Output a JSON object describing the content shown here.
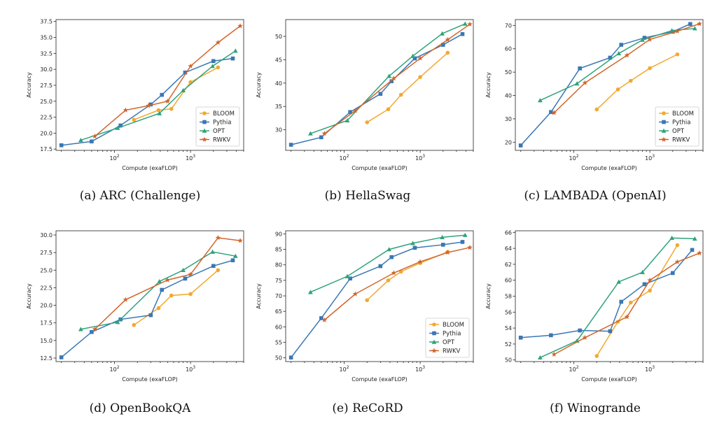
{
  "colors": {
    "BLOOM": "#f2a830",
    "Pythia": "#3a77b4",
    "OPT": "#2fa37b",
    "RWKV": "#d2652a"
  },
  "markers": {
    "BLOOM": "circle",
    "Pythia": "square",
    "OPT": "triangle",
    "RWKV": "star"
  },
  "chart_data": [
    {
      "type": "line",
      "caption": "(a) ARC (Challenge)",
      "xlabel": "Compute (exaFLOP)",
      "ylabel": "Accuracy",
      "xscale": "log",
      "xlim": [
        17,
        5000
      ],
      "ylim": [
        17.3,
        37.8
      ],
      "yticks": [
        "17.5",
        "20.0",
        "22.5",
        "25.0",
        "27.5",
        "30.0",
        "32.5",
        "35.0",
        "37.5"
      ],
      "xticks": [
        "10^2",
        "10^3"
      ],
      "legend": "lower-right",
      "legend_entries": [
        "BLOOM",
        "Pythia",
        "OPT",
        "RWKV"
      ],
      "series": [
        {
          "name": "BLOOM",
          "points": [
            [
              180,
              22.1
            ],
            [
              380,
              23.6
            ],
            [
              560,
              23.8
            ],
            [
              1000,
              28.0
            ],
            [
              2300,
              30.3
            ]
          ]
        },
        {
          "name": "Pythia",
          "points": [
            [
              20,
              18.1
            ],
            [
              50,
              18.7
            ],
            [
              120,
              21.2
            ],
            [
              300,
              24.5
            ],
            [
              420,
              26.0
            ],
            [
              850,
              29.5
            ],
            [
              2000,
              31.3
            ],
            [
              3600,
              31.7
            ]
          ]
        },
        {
          "name": "OPT",
          "points": [
            [
              36,
              18.9
            ],
            [
              110,
              20.8
            ],
            [
              390,
              23.1
            ],
            [
              800,
              26.7
            ],
            [
              1950,
              30.5
            ],
            [
              3900,
              32.9
            ]
          ]
        },
        {
          "name": "RWKV",
          "points": [
            [
              55,
              19.5
            ],
            [
              140,
              23.6
            ],
            [
              280,
              24.3
            ],
            [
              500,
              25.0
            ],
            [
              1000,
              30.5
            ],
            [
              2300,
              34.2
            ],
            [
              4500,
              36.8
            ]
          ]
        }
      ]
    },
    {
      "type": "line",
      "caption": "(b) HellaSwag",
      "xlabel": "Compute (exaFLOP)",
      "ylabel": "Accuracy",
      "xscale": "log",
      "xlim": [
        17,
        5000
      ],
      "ylim": [
        25.6,
        53.6
      ],
      "yticks": [
        "30",
        "35",
        "40",
        "45",
        "50"
      ],
      "xticks": [
        "10^2",
        "10^3"
      ],
      "series": [
        {
          "name": "BLOOM",
          "points": [
            [
              200,
              31.6
            ],
            [
              380,
              34.4
            ],
            [
              560,
              37.5
            ],
            [
              1000,
              41.3
            ],
            [
              2300,
              46.5
            ]
          ]
        },
        {
          "name": "Pythia",
          "points": [
            [
              20,
              26.8
            ],
            [
              50,
              28.4
            ],
            [
              120,
              33.8
            ],
            [
              300,
              37.7
            ],
            [
              420,
              40.4
            ],
            [
              850,
              45.3
            ],
            [
              2000,
              48.2
            ],
            [
              3600,
              50.5
            ]
          ]
        },
        {
          "name": "OPT",
          "points": [
            [
              36,
              29.2
            ],
            [
              110,
              32.0
            ],
            [
              390,
              41.5
            ],
            [
              800,
              45.8
            ],
            [
              1950,
              50.6
            ],
            [
              3900,
              52.7
            ]
          ]
        },
        {
          "name": "RWKV",
          "points": [
            [
              55,
              29.2
            ],
            [
              140,
              34.1
            ],
            [
              450,
              41.0
            ],
            [
              1000,
              45.3
            ],
            [
              2300,
              49.3
            ],
            [
              4500,
              52.6
            ]
          ]
        }
      ]
    },
    {
      "type": "line",
      "caption": "(c) LAMBADA (OpenAI)",
      "xlabel": "Compute (exaFLOP)",
      "ylabel": "Accuracy",
      "xscale": "log",
      "xlim": [
        17,
        5000
      ],
      "ylim": [
        16.5,
        72.5
      ],
      "yticks": [
        "20",
        "30",
        "40",
        "50",
        "60",
        "70"
      ],
      "xticks": [
        "10^2",
        "10^3"
      ],
      "legend": "lower-right",
      "legend_entries": [
        "BLOOM",
        "Pythia",
        "OPT",
        "RWKV"
      ],
      "series": [
        {
          "name": "BLOOM",
          "points": [
            [
              200,
              34.0
            ],
            [
              380,
              42.6
            ],
            [
              560,
              46.3
            ],
            [
              1000,
              51.7
            ],
            [
              2300,
              57.6
            ]
          ]
        },
        {
          "name": "Pythia",
          "points": [
            [
              20,
              18.6
            ],
            [
              50,
              32.9
            ],
            [
              120,
              51.6
            ],
            [
              300,
              56.2
            ],
            [
              420,
              61.7
            ],
            [
              850,
              64.7
            ],
            [
              2000,
              67.3
            ],
            [
              3400,
              70.6
            ]
          ]
        },
        {
          "name": "OPT",
          "points": [
            [
              36,
              37.9
            ],
            [
              110,
              45.1
            ],
            [
              390,
              58.0
            ],
            [
              800,
              63.8
            ],
            [
              1950,
              67.8
            ],
            [
              3900,
              68.7
            ]
          ]
        },
        {
          "name": "RWKV",
          "points": [
            [
              55,
              32.6
            ],
            [
              140,
              45.4
            ],
            [
              500,
              57.2
            ],
            [
              1000,
              64.0
            ],
            [
              2300,
              67.5
            ],
            [
              4500,
              70.7
            ]
          ]
        }
      ]
    },
    {
      "type": "line",
      "caption": "(d) OpenBookQA",
      "xlabel": "Compute (exaFLOP)",
      "ylabel": "Accuracy",
      "xscale": "log",
      "xlim": [
        17,
        5000
      ],
      "ylim": [
        12.0,
        30.6
      ],
      "yticks": [
        "12.5",
        "15.0",
        "17.5",
        "20.0",
        "22.5",
        "25.0",
        "27.5",
        "30.0"
      ],
      "xticks": [
        "10^2",
        "10^3"
      ],
      "series": [
        {
          "name": "BLOOM",
          "points": [
            [
              180,
              17.2
            ],
            [
              380,
              19.6
            ],
            [
              560,
              21.4
            ],
            [
              1000,
              21.6
            ],
            [
              2300,
              25.0
            ]
          ]
        },
        {
          "name": "Pythia",
          "points": [
            [
              20,
              12.6
            ],
            [
              50,
              16.2
            ],
            [
              120,
              18.0
            ],
            [
              300,
              18.6
            ],
            [
              420,
              22.2
            ],
            [
              850,
              23.8
            ],
            [
              2000,
              25.6
            ],
            [
              3600,
              26.4
            ]
          ]
        },
        {
          "name": "OPT",
          "points": [
            [
              36,
              16.6
            ],
            [
              110,
              17.6
            ],
            [
              390,
              23.4
            ],
            [
              800,
              25.0
            ],
            [
              1950,
              27.6
            ],
            [
              3900,
              27.0
            ]
          ]
        },
        {
          "name": "RWKV",
          "points": [
            [
              55,
              16.6
            ],
            [
              140,
              20.8
            ],
            [
              500,
              23.6
            ],
            [
              1000,
              24.4
            ],
            [
              2300,
              29.6
            ],
            [
              4500,
              29.2
            ]
          ]
        }
      ]
    },
    {
      "type": "line",
      "caption": "(e) ReCoRD",
      "xlabel": "Compute (exaFLOP)",
      "ylabel": "Accuracy",
      "xscale": "log",
      "xlim": [
        17,
        5000
      ],
      "ylim": [
        48.8,
        91.0
      ],
      "yticks": [
        "50",
        "55",
        "60",
        "65",
        "70",
        "75",
        "80",
        "85",
        "90"
      ],
      "xticks": [
        "10^2",
        "10^3"
      ],
      "legend": "lower-right",
      "legend_entries": [
        "BLOOM",
        "Pythia",
        "OPT",
        "RWKV"
      ],
      "series": [
        {
          "name": "BLOOM",
          "points": [
            [
              200,
              68.6
            ],
            [
              380,
              75.0
            ],
            [
              560,
              77.8
            ],
            [
              1000,
              80.6
            ],
            [
              2300,
              84.2
            ]
          ]
        },
        {
          "name": "Pythia",
          "points": [
            [
              20,
              50.1
            ],
            [
              50,
              62.8
            ],
            [
              120,
              75.6
            ],
            [
              300,
              79.6
            ],
            [
              420,
              82.5
            ],
            [
              850,
              85.5
            ],
            [
              2000,
              86.5
            ],
            [
              3600,
              87.4
            ]
          ]
        },
        {
          "name": "OPT",
          "points": [
            [
              36,
              71.2
            ],
            [
              110,
              76.3
            ],
            [
              390,
              85.0
            ],
            [
              800,
              87.0
            ],
            [
              1950,
              88.9
            ],
            [
              3900,
              89.6
            ]
          ]
        },
        {
          "name": "RWKV",
          "points": [
            [
              55,
              62.2
            ],
            [
              140,
              70.6
            ],
            [
              450,
              77.4
            ],
            [
              1000,
              81.0
            ],
            [
              2300,
              84.0
            ],
            [
              4500,
              85.6
            ]
          ]
        }
      ]
    },
    {
      "type": "line",
      "caption": "(f) Winogrande",
      "xlabel": "Compute (exaFLOP)",
      "ylabel": "Accuracy",
      "xscale": "log",
      "xlim": [
        17,
        5000
      ],
      "ylim": [
        49.8,
        66.2
      ],
      "yticks": [
        "50",
        "52",
        "54",
        "56",
        "58",
        "60",
        "62",
        "64",
        "66"
      ],
      "xticks": [
        "10^2",
        "10^3"
      ],
      "series": [
        {
          "name": "BLOOM",
          "points": [
            [
              200,
              50.5
            ],
            [
              380,
              54.8
            ],
            [
              560,
              57.2
            ],
            [
              1000,
              58.7
            ],
            [
              2300,
              64.4
            ]
          ]
        },
        {
          "name": "Pythia",
          "points": [
            [
              20,
              52.8
            ],
            [
              50,
              53.1
            ],
            [
              120,
              53.7
            ],
            [
              300,
              53.6
            ],
            [
              420,
              57.3
            ],
            [
              850,
              59.5
            ],
            [
              2000,
              60.9
            ],
            [
              3600,
              63.8
            ]
          ]
        },
        {
          "name": "OPT",
          "points": [
            [
              36,
              50.3
            ],
            [
              110,
              52.4
            ],
            [
              390,
              59.8
            ],
            [
              800,
              61.0
            ],
            [
              1950,
              65.3
            ],
            [
              3900,
              65.2
            ]
          ]
        },
        {
          "name": "RWKV",
          "points": [
            [
              55,
              50.7
            ],
            [
              140,
              52.8
            ],
            [
              500,
              55.4
            ],
            [
              1000,
              60.0
            ],
            [
              2300,
              62.3
            ],
            [
              4500,
              63.4
            ]
          ]
        }
      ]
    }
  ]
}
